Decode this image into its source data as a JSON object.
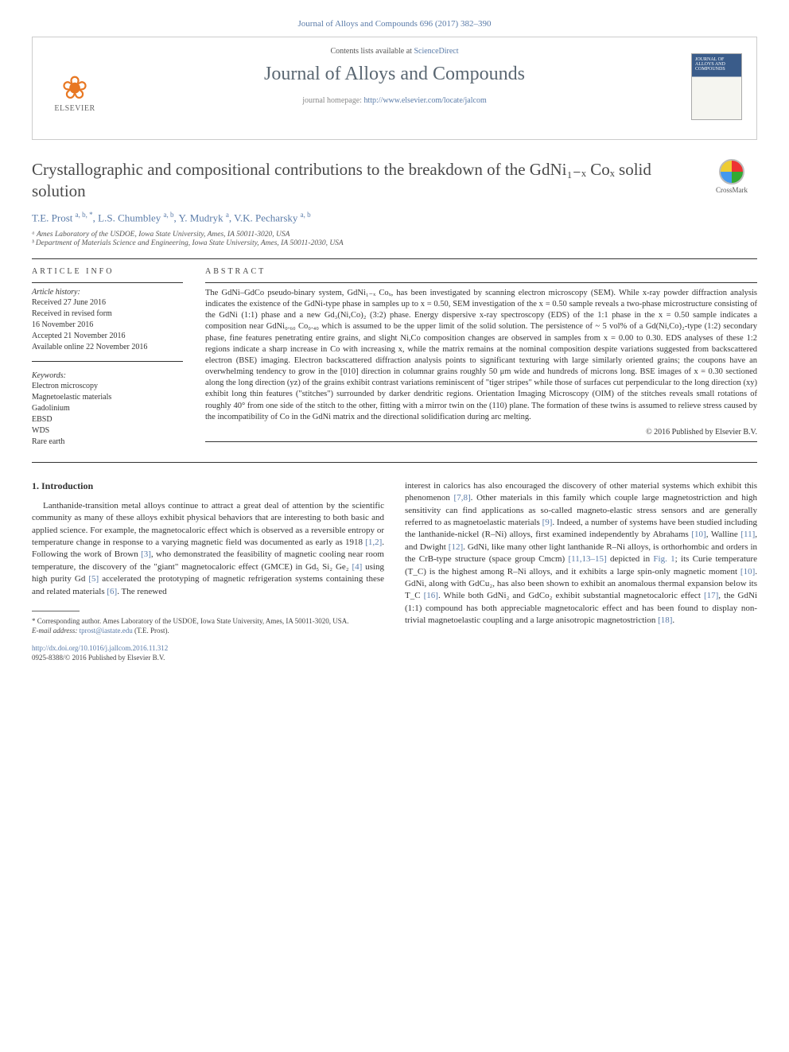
{
  "citation": "Journal of Alloys and Compounds 696 (2017) 382–390",
  "header": {
    "contents_prefix": "Contents lists available at ",
    "contents_link": "ScienceDirect",
    "journal_name": "Journal of Alloys and Compounds",
    "homepage_prefix": "journal homepage: ",
    "homepage_url": "http://www.elsevier.com/locate/jalcom",
    "publisher": "ELSEVIER",
    "cover_label": "JOURNAL OF ALLOYS AND COMPOUNDS"
  },
  "crossmark": "CrossMark",
  "title": "Crystallographic and compositional contributions to the breakdown of the GdNi₁₋ₓ Coₓ solid solution",
  "authors_html": "T.E. Prost <sup>a, b, *</sup>, L.S. Chumbley <sup>a, b</sup>, Y. Mudryk <sup>a</sup>, V.K. Pecharsky <sup>a, b</sup>",
  "affiliations": [
    "ᵃ Ames Laboratory of the USDOE, Iowa State University, Ames, IA 50011-3020, USA",
    "ᵇ Department of Materials Science and Engineering, Iowa State University, Ames, IA 50011-2030, USA"
  ],
  "info": {
    "head": "ARTICLE INFO",
    "history_label": "Article history:",
    "history": [
      "Received 27 June 2016",
      "Received in revised form",
      "16 November 2016",
      "Accepted 21 November 2016",
      "Available online 22 November 2016"
    ],
    "keywords_label": "Keywords:",
    "keywords": [
      "Electron microscopy",
      "Magnetoelastic materials",
      "Gadolinium",
      "EBSD",
      "WDS",
      "Rare earth"
    ]
  },
  "abstract": {
    "head": "ABSTRACT",
    "text": "The GdNi–GdCo pseudo-binary system, GdNi₁₋ₓ Coₓ, has been investigated by scanning electron microscopy (SEM). While x-ray powder diffraction analysis indicates the existence of the GdNi-type phase in samples up to x = 0.50, SEM investigation of the x = 0.50 sample reveals a two-phase microstructure consisting of the GdNi (1:1) phase and a new Gd₃(Ni,Co)₂ (3:2) phase. Energy dispersive x-ray spectroscopy (EDS) of the 1:1 phase in the x = 0.50 sample indicates a composition near GdNi₀.₆₀ Co₀.₄₀ which is assumed to be the upper limit of the solid solution. The persistence of ~ 5 vol% of a Gd(Ni,Co)₂-type (1:2) secondary phase, fine features penetrating entire grains, and slight Ni,Co composition changes are observed in samples from x = 0.00 to 0.30. EDS analyses of these 1:2 regions indicate a sharp increase in Co with increasing x, while the matrix remains at the nominal composition despite variations suggested from backscattered electron (BSE) imaging. Electron backscattered diffraction analysis points to significant texturing with large similarly oriented grains; the coupons have an overwhelming tendency to grow in the [010] direction in columnar grains roughly 50 μm wide and hundreds of microns long. BSE images of x = 0.30 sectioned along the long direction (yz) of the grains exhibit contrast variations reminiscent of \"tiger stripes\" while those of surfaces cut perpendicular to the long direction (xy) exhibit long thin features (\"stitches\") surrounded by darker dendritic regions. Orientation Imaging Microscopy (OIM) of the stitches reveals small rotations of roughly 40° from one side of the stitch to the other, fitting with a mirror twin on the (110) plane. The formation of these twins is assumed to relieve stress caused by the incompatibility of Co in the GdNi matrix and the directional solidification during arc melting.",
    "copyright": "© 2016 Published by Elsevier B.V."
  },
  "intro": {
    "heading": "1. Introduction",
    "col1": "Lanthanide-transition metal alloys continue to attract a great deal of attention by the scientific community as many of these alloys exhibit physical behaviors that are interesting to both basic and applied science. For example, the magnetocaloric effect which is observed as a reversible entropy or temperature change in response to a varying magnetic field was documented as early as 1918 [1,2]. Following the work of Brown [3], who demonstrated the feasibility of magnetic cooling near room temperature, the discovery of the \"giant\" magnetocaloric effect (GMCE) in Gd₅ Si₂ Ge₂ [4] using high purity Gd [5] accelerated the prototyping of magnetic refrigeration systems containing these and related materials [6]. The renewed",
    "col2": "interest in calorics has also encouraged the discovery of other material systems which exhibit this phenomenon [7,8]. Other materials in this family which couple large magnetostriction and high sensitivity can find applications as so-called magneto-elastic stress sensors and are generally referred to as magnetoelastic materials [9]. Indeed, a number of systems have been studied including the lanthanide-nickel (R–Ni) alloys, first examined independently by Abrahams [10], Walline [11], and Dwight [12]. GdNi, like many other light lanthanide R–Ni alloys, is orthorhombic and orders in the CrB-type structure (space group Cmcm) [11,13–15] depicted in Fig. 1; its Curie temperature (T_C) is the highest among R–Ni alloys, and it exhibits a large spin-only magnetic moment [10]. GdNi, along with GdCu₂, has also been shown to exhibit an anomalous thermal expansion below its T_C [16]. While both GdNi₂ and GdCo₂ exhibit substantial magnetocaloric effect [17], the GdNi (1:1) compound has both appreciable magnetocaloric effect and has been found to display non-trivial magnetoelastic coupling and a large anisotropic magnetostriction [18]."
  },
  "footnote": {
    "corr": "* Corresponding author. Ames Laboratory of the USDOE, Iowa State University, Ames, IA 50011-3020, USA.",
    "email_label": "E-mail address: ",
    "email": "tprost@iastate.edu",
    "email_suffix": " (T.E. Prost)."
  },
  "doi": {
    "url": "http://dx.doi.org/10.1016/j.jallcom.2016.11.312",
    "issn_copy": "0925-8388/© 2016 Published by Elsevier B.V."
  }
}
